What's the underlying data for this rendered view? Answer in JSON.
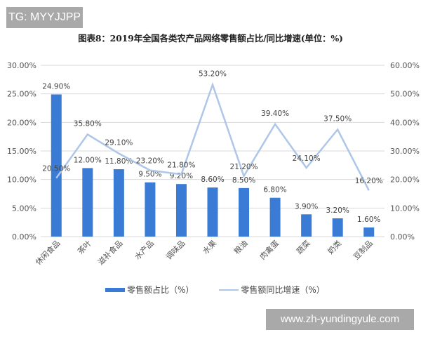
{
  "watermark_badge": "TG: MYYJJPP",
  "url_badge": "www.zh-yundingyule.com",
  "chart_data": {
    "type": "bar+line",
    "title": "图表8：2019年全国各类农产品网络零售额占比/同比增速(单位：%)",
    "categories": [
      "休闲食品",
      "茶叶",
      "滋补食品",
      "水产品",
      "调味品",
      "水果",
      "粮油",
      "肉禽蛋",
      "蔬菜",
      "奶类",
      "豆制品"
    ],
    "series": [
      {
        "name": "零售额占比（%）",
        "type": "bar",
        "axis": "left",
        "color": "#3a7bd5",
        "values": [
          24.9,
          12.0,
          11.8,
          9.5,
          9.2,
          8.6,
          8.5,
          6.8,
          3.9,
          3.2,
          1.6
        ],
        "labels": [
          "24.90%",
          "12.00%",
          "11.80%",
          "9.50%",
          "9.20%",
          "8.60%",
          "8.50%",
          "6.80%",
          "3.90%",
          "3.20%",
          "1.60%"
        ]
      },
      {
        "name": "零售额同比增速（%）",
        "type": "line",
        "axis": "right",
        "color": "#aec6e8",
        "values": [
          20.5,
          35.8,
          29.1,
          23.2,
          21.8,
          53.2,
          21.2,
          39.4,
          24.1,
          37.5,
          16.2
        ],
        "labels": [
          "20.50%",
          "35.80%",
          "29.10%",
          "23.20%",
          "21.80%",
          "53.20%",
          "21.20%",
          "39.40%",
          "24.10%",
          "37.50%",
          "16.20%"
        ]
      }
    ],
    "left_axis": {
      "ylim": [
        0,
        30
      ],
      "ticks": [
        "0.00%",
        "5.00%",
        "10.00%",
        "15.00%",
        "20.00%",
        "25.00%",
        "30.00%"
      ]
    },
    "right_axis": {
      "ylim": [
        0,
        60
      ],
      "ticks": [
        "0.00%",
        "10.00%",
        "20.00%",
        "30.00%",
        "40.00%",
        "50.00%",
        "60.00%"
      ]
    },
    "grid": true,
    "legend_position": "bottom"
  },
  "legend": {
    "bar_label": "零售额占比（%）",
    "line_label": "零售额同比增速（%）"
  }
}
